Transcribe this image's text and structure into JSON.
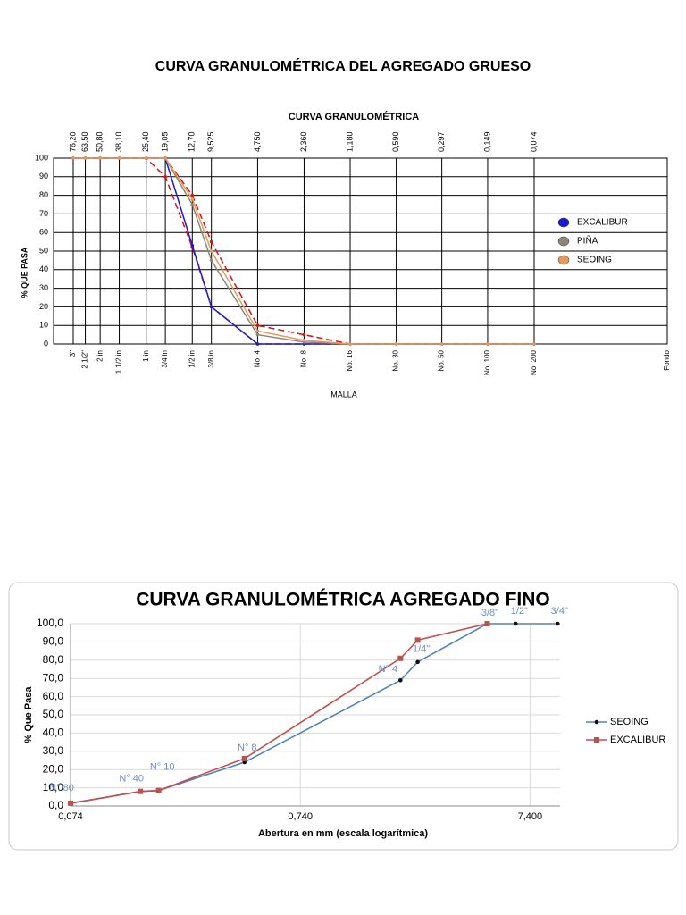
{
  "title": "CURVA GRANULOMÉTRICA DEL AGREGADO GRUESO",
  "chart_data": [
    {
      "type": "line",
      "title": "CURVA GRANULOMÉTRICA",
      "y_label": "% QUE PASA",
      "x_label": "MALLA",
      "x_scale": "log",
      "x_reversed": true,
      "grid": true,
      "legend": "right",
      "xticks": [
        {
          "value": 76.2,
          "label": "76,20"
        },
        {
          "value": 63.5,
          "label": "63,50"
        },
        {
          "value": 50.8,
          "label": "50,80"
        },
        {
          "value": 38.1,
          "label": "38,10"
        },
        {
          "value": 25.4,
          "label": "25,40"
        },
        {
          "value": 19.05,
          "label": "19,05"
        },
        {
          "value": 12.7,
          "label": "12,70"
        },
        {
          "value": 9.525,
          "label": "9,525"
        },
        {
          "value": 4.75,
          "label": "4,750"
        },
        {
          "value": 2.36,
          "label": "2,360"
        },
        {
          "value": 1.18,
          "label": "1,180"
        },
        {
          "value": 0.59,
          "label": "0,590"
        },
        {
          "value": 0.297,
          "label": "0,297"
        },
        {
          "value": 0.149,
          "label": "0,149"
        },
        {
          "value": 0.074,
          "label": "0,074"
        }
      ],
      "categories": [
        "3\"",
        "2 1/2\"",
        "2 in",
        "1 1/2 in",
        "1 in",
        "3/4 in",
        "1/2 in",
        "3/8 in",
        "No. 4",
        "No. 8",
        "No. 16",
        "No. 30",
        "No. 50",
        "No. 100",
        "No. 200"
      ],
      "end_label": "Fondo",
      "ylim": [
        0,
        100
      ],
      "yticks": [
        0,
        10,
        20,
        30,
        40,
        50,
        60,
        70,
        80,
        90,
        100
      ],
      "series": [
        {
          "name": "EXCALIBUR",
          "color": "#1a1ad6",
          "values": [
            100,
            100,
            100,
            100,
            100,
            100,
            53,
            20,
            0,
            0,
            0,
            0,
            0,
            0,
            0
          ]
        },
        {
          "name": "PIÑA",
          "color": "#8c8678",
          "values": [
            100,
            100,
            100,
            100,
            100,
            100,
            75,
            45,
            5,
            1,
            0,
            0,
            0,
            0,
            0
          ]
        },
        {
          "name": "SEOING",
          "color": "#e49a5c",
          "values": [
            100,
            100,
            100,
            100,
            100,
            100,
            78,
            50,
            7,
            2,
            0,
            0,
            0,
            0,
            0
          ]
        }
      ],
      "limits": [
        {
          "color": "#e01010",
          "values": [
            100,
            100,
            100,
            100,
            100,
            100,
            80,
            55,
            10,
            5,
            0,
            0,
            0,
            0,
            0
          ]
        },
        {
          "color": "#e01010",
          "values": [
            100,
            100,
            100,
            100,
            100,
            90,
            52,
            20,
            0,
            0,
            0,
            0,
            0,
            0,
            0
          ]
        }
      ]
    },
    {
      "type": "line",
      "title": "CURVA GRANULOMÉTRICA AGREGADO FINO",
      "x_label": "Abertura en mm (escala logarítmica)",
      "y_label": "% Que Pasa",
      "x_scale": "log",
      "grid": true,
      "legend": "right",
      "xlim": [
        0.074,
        10
      ],
      "xticks": [
        {
          "value": 0.074,
          "label": "0,074"
        },
        {
          "value": 0.74,
          "label": "0,740"
        },
        {
          "value": 7.4,
          "label": "7,400"
        }
      ],
      "ylim": [
        0,
        100
      ],
      "yticks": [
        {
          "value": 0,
          "label": "0,0"
        },
        {
          "value": 10,
          "label": "10,0"
        },
        {
          "value": 20,
          "label": "20,0"
        },
        {
          "value": 30,
          "label": "30,0"
        },
        {
          "value": 40,
          "label": "40,0"
        },
        {
          "value": 50,
          "label": "50,0"
        },
        {
          "value": 60,
          "label": "60,0"
        },
        {
          "value": 70,
          "label": "70,0"
        },
        {
          "value": 80,
          "label": "80,0"
        },
        {
          "value": 90,
          "label": "90,0"
        },
        {
          "value": 100,
          "label": "100,0"
        }
      ],
      "point_labels": [
        "N° 80",
        "N° 40",
        "N° 10",
        "N° 8",
        "N° 4",
        "1/4\"",
        "3/8\"",
        "1/2\"",
        "3/4\""
      ],
      "series": [
        {
          "name": "SEOING",
          "color": "#4f81bd",
          "marker": "circle",
          "x": [
            0.074,
            0.149,
            0.179,
            0.423,
            2.02,
            2.4,
            4.82,
            6.41,
            9.76
          ],
          "values": [
            1.5,
            8,
            8.5,
            24,
            69,
            79,
            100,
            100,
            100
          ]
        },
        {
          "name": "EXCALIBUR",
          "color": "#c0504d",
          "marker": "square",
          "x": [
            0.074,
            0.149,
            0.179,
            0.423,
            2.02,
            2.4,
            4.82
          ],
          "values": [
            1.5,
            8,
            8.5,
            26,
            81,
            91,
            100
          ]
        }
      ]
    }
  ]
}
